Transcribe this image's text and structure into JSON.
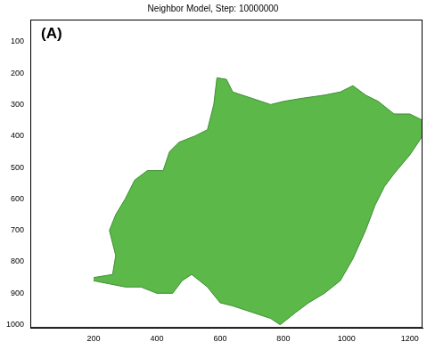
{
  "chart_data": {
    "type": "area",
    "title": "Neighbor Model, Step: 10000000",
    "annotation": "(A)",
    "x": [
      200,
      260,
      270,
      250,
      270,
      300,
      330,
      370,
      420,
      440,
      470,
      520,
      560,
      580,
      590,
      620,
      640,
      700,
      760,
      800,
      860,
      930,
      980,
      1020,
      1060,
      1100,
      1150,
      1200,
      1240,
      1240,
      1200,
      1150,
      1120,
      1090,
      1060,
      1020,
      980,
      930,
      880,
      840,
      790,
      760,
      700,
      640,
      600,
      560,
      510,
      480,
      450,
      400,
      350,
      300,
      250,
      200
    ],
    "values": [
      850,
      840,
      780,
      700,
      650,
      600,
      540,
      510,
      510,
      450,
      420,
      400,
      380,
      300,
      215,
      220,
      260,
      280,
      300,
      290,
      280,
      270,
      260,
      240,
      270,
      290,
      330,
      330,
      350,
      400,
      460,
      520,
      560,
      620,
      700,
      790,
      860,
      900,
      930,
      960,
      1000,
      980,
      960,
      940,
      930,
      880,
      840,
      860,
      900,
      900,
      880,
      880,
      870,
      860
    ],
    "color": "#5cb848",
    "xlim": [
      0,
      1240
    ],
    "xticks": [
      200,
      400,
      600,
      800,
      1000,
      1200
    ],
    "ylim": [
      30,
      1010
    ],
    "yticks": [
      100,
      200,
      300,
      400,
      500,
      600,
      700,
      800,
      900,
      1000
    ],
    "grid": false
  }
}
